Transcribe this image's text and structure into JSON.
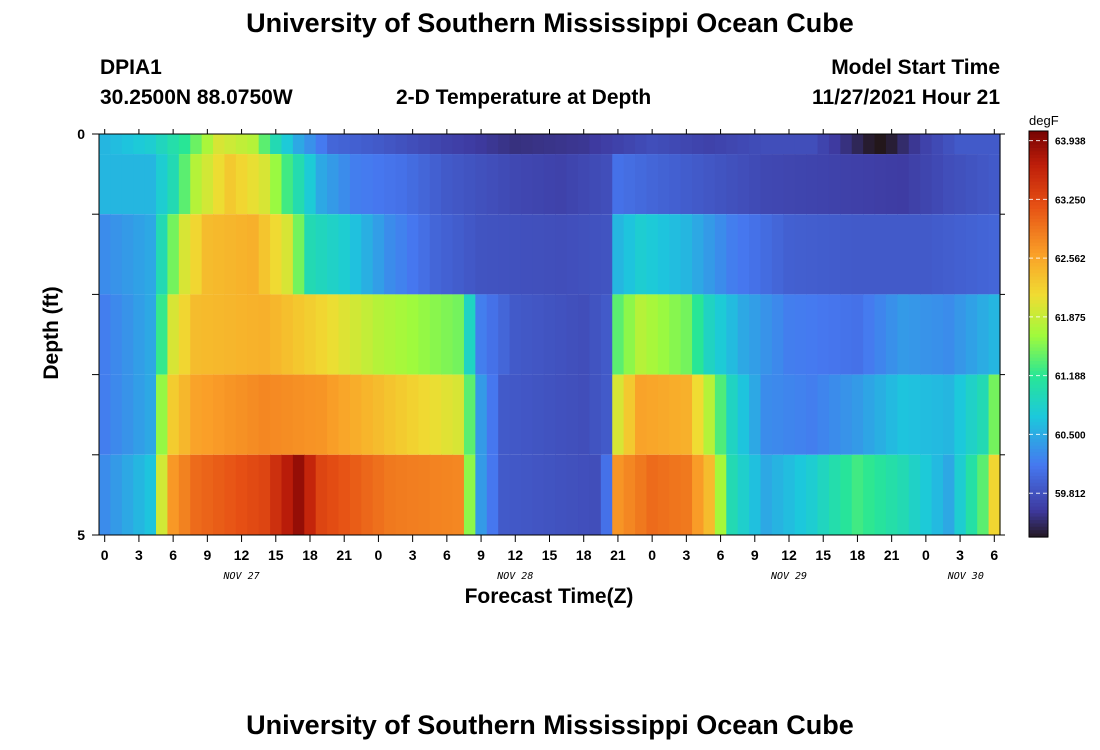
{
  "header": {
    "title": "University of Southern Mississippi Ocean Cube",
    "footer_title": "University of Southern Mississippi Ocean Cube",
    "station_id": "DPIA1",
    "station_coords": "30.2500N  88.0750W",
    "model_start_label": "Model Start Time",
    "model_start_value": "11/27/2021 Hour 21"
  },
  "chart_data": {
    "type": "heatmap",
    "title": "2-D Temperature at Depth",
    "xlabel": "Forecast Time(Z)",
    "ylabel": "Depth (ft)",
    "colorbar_unit": "degF",
    "x_hours": [
      0,
      1,
      2,
      3,
      4,
      5,
      6,
      7,
      8,
      9,
      10,
      11,
      12,
      13,
      14,
      15,
      16,
      17,
      18,
      19,
      20,
      21,
      22,
      23,
      24,
      25,
      26,
      27,
      28,
      29,
      30,
      31,
      32,
      33,
      34,
      35,
      36,
      37,
      38,
      39,
      40,
      41,
      42,
      43,
      44,
      45,
      46,
      47,
      48,
      49,
      50,
      51,
      52,
      53,
      54,
      55,
      56,
      57,
      58,
      59,
      60,
      61,
      62,
      63,
      64,
      65,
      66,
      67,
      68,
      69,
      70,
      71,
      72,
      73,
      74,
      75,
      76,
      77,
      78
    ],
    "x_tick_labels": [
      "0",
      "3",
      "6",
      "9",
      "12",
      "15",
      "18",
      "21",
      "0",
      "3",
      "6",
      "9",
      "12",
      "15",
      "18",
      "21",
      "0",
      "3",
      "6",
      "9",
      "12",
      "15",
      "18",
      "21",
      "0",
      "3",
      "6"
    ],
    "day_labels": [
      "NOV 27",
      "NOV 28",
      "NOV 29",
      "NOV 30"
    ],
    "day_label_hours": [
      12,
      36,
      60,
      75.5
    ],
    "y_range": [
      0,
      5
    ],
    "y_tick_labels": [
      "0",
      "5"
    ],
    "depth_levels": [
      0,
      0.5,
      1.5,
      2.5,
      3.5,
      4.5
    ],
    "colorbar_ticks": [
      63.938,
      63.25,
      62.562,
      61.875,
      61.188,
      60.5,
      59.812
    ],
    "colorbar_range": [
      59.3,
      64.05
    ],
    "layers": [
      {
        "depth": 0,
        "anchors": [
          [
            0,
            60.6
          ],
          [
            4,
            60.8
          ],
          [
            7,
            61.2
          ],
          [
            10,
            62.0
          ],
          [
            13,
            61.8
          ],
          [
            15,
            61.0
          ],
          [
            17,
            60.5
          ],
          [
            20,
            60.0
          ],
          [
            24,
            59.9
          ],
          [
            30,
            59.7
          ],
          [
            36,
            59.55
          ],
          [
            42,
            59.6
          ],
          [
            48,
            59.8
          ],
          [
            53,
            59.7
          ],
          [
            58,
            59.8
          ],
          [
            62,
            59.8
          ],
          [
            65,
            59.55
          ],
          [
            67,
            59.35
          ],
          [
            67.5,
            59.25
          ],
          [
            68,
            59.1
          ],
          [
            68.5,
            59.3
          ],
          [
            70,
            59.5
          ],
          [
            72,
            59.7
          ],
          [
            75,
            59.9
          ],
          [
            78,
            59.9
          ]
        ]
      },
      {
        "depth": 0.5,
        "anchors": [
          [
            0,
            60.6
          ],
          [
            4,
            60.6
          ],
          [
            6,
            61.0
          ],
          [
            8,
            61.8
          ],
          [
            11,
            62.3
          ],
          [
            14,
            62.0
          ],
          [
            16,
            61.3
          ],
          [
            19,
            60.5
          ],
          [
            22,
            60.2
          ],
          [
            26,
            60.1
          ],
          [
            30,
            59.9
          ],
          [
            36,
            59.75
          ],
          [
            40,
            59.7
          ],
          [
            44,
            59.8
          ],
          [
            45,
            60.1
          ],
          [
            48,
            60.0
          ],
          [
            52,
            59.9
          ],
          [
            58,
            59.75
          ],
          [
            64,
            59.7
          ],
          [
            70,
            59.65
          ],
          [
            74,
            59.8
          ],
          [
            78,
            59.9
          ]
        ]
      },
      {
        "depth": 1.5,
        "anchors": [
          [
            0,
            60.3
          ],
          [
            4,
            60.5
          ],
          [
            5,
            61.0
          ],
          [
            7,
            62.0
          ],
          [
            9,
            62.4
          ],
          [
            13,
            62.5
          ],
          [
            16,
            62.0
          ],
          [
            18,
            61.0
          ],
          [
            21,
            60.8
          ],
          [
            25,
            60.3
          ],
          [
            29,
            60.0
          ],
          [
            33,
            59.85
          ],
          [
            40,
            59.8
          ],
          [
            44,
            59.85
          ],
          [
            45,
            60.6
          ],
          [
            47,
            60.8
          ],
          [
            51,
            60.6
          ],
          [
            55,
            60.2
          ],
          [
            60,
            59.95
          ],
          [
            66,
            59.9
          ],
          [
            72,
            59.9
          ],
          [
            78,
            60.0
          ]
        ]
      },
      {
        "depth": 2.5,
        "anchors": [
          [
            0,
            60.2
          ],
          [
            4,
            60.5
          ],
          [
            6,
            62.0
          ],
          [
            8,
            62.4
          ],
          [
            14,
            62.5
          ],
          [
            19,
            62.2
          ],
          [
            24,
            61.8
          ],
          [
            31,
            61.5
          ],
          [
            32,
            60.9
          ],
          [
            33,
            60.2
          ],
          [
            36,
            59.9
          ],
          [
            42,
            59.8
          ],
          [
            44,
            59.9
          ],
          [
            45,
            61.4
          ],
          [
            47,
            61.8
          ],
          [
            51,
            61.5
          ],
          [
            53,
            60.9
          ],
          [
            56,
            60.5
          ],
          [
            60,
            60.2
          ],
          [
            66,
            60.1
          ],
          [
            70,
            60.4
          ],
          [
            74,
            60.3
          ],
          [
            78,
            60.6
          ]
        ]
      },
      {
        "depth": 3.5,
        "anchors": [
          [
            0,
            60.2
          ],
          [
            4,
            60.5
          ],
          [
            5.5,
            62.2
          ],
          [
            8,
            62.6
          ],
          [
            14,
            62.8
          ],
          [
            19,
            62.7
          ],
          [
            24,
            62.4
          ],
          [
            31,
            62.0
          ],
          [
            32,
            61.4
          ],
          [
            33,
            60.4
          ],
          [
            35,
            59.9
          ],
          [
            42,
            59.8
          ],
          [
            44,
            59.9
          ],
          [
            45,
            62.0
          ],
          [
            47,
            62.6
          ],
          [
            51,
            62.5
          ],
          [
            53,
            61.8
          ],
          [
            55,
            60.9
          ],
          [
            58,
            60.3
          ],
          [
            62,
            60.2
          ],
          [
            66,
            60.4
          ],
          [
            70,
            60.7
          ],
          [
            74,
            60.6
          ],
          [
            77,
            61.0
          ],
          [
            78,
            61.5
          ]
        ]
      },
      {
        "depth": 4.5,
        "anchors": [
          [
            0,
            60.3
          ],
          [
            4,
            60.7
          ],
          [
            5.5,
            62.6
          ],
          [
            8,
            63.0
          ],
          [
            14,
            63.3
          ],
          [
            17,
            63.9
          ],
          [
            19,
            63.3
          ],
          [
            25,
            62.9
          ],
          [
            31,
            62.8
          ],
          [
            32,
            61.6
          ],
          [
            33,
            60.4
          ],
          [
            35,
            59.9
          ],
          [
            43,
            59.8
          ],
          [
            44,
            60.1
          ],
          [
            45,
            62.7
          ],
          [
            48,
            63.0
          ],
          [
            51,
            62.9
          ],
          [
            53,
            62.4
          ],
          [
            55,
            61.0
          ],
          [
            58,
            60.5
          ],
          [
            62,
            60.8
          ],
          [
            66,
            61.3
          ],
          [
            70,
            61.0
          ],
          [
            74,
            60.5
          ],
          [
            77,
            61.4
          ],
          [
            78,
            62.2
          ]
        ]
      }
    ]
  }
}
